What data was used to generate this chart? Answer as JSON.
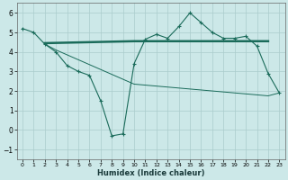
{
  "bg_color": "#cce8e8",
  "grid_color": "#aacccc",
  "line_color": "#1a6b5a",
  "xlabel": "Humidex (Indice chaleur)",
  "ylim": [
    -1.5,
    6.5
  ],
  "xlim": [
    -0.5,
    23.5
  ],
  "yticks": [
    -1,
    0,
    1,
    2,
    3,
    4,
    5,
    6
  ],
  "xticks": [
    0,
    1,
    2,
    3,
    4,
    5,
    6,
    7,
    8,
    9,
    10,
    11,
    12,
    13,
    14,
    15,
    16,
    17,
    18,
    19,
    20,
    21,
    22,
    23
  ],
  "line1_x": [
    0,
    1,
    2,
    3,
    4,
    5,
    6,
    7,
    8,
    9,
    10,
    11,
    12,
    13,
    14,
    15,
    16,
    17,
    18,
    19,
    20,
    21,
    22,
    23
  ],
  "line1_y": [
    5.2,
    5.0,
    4.4,
    4.0,
    3.3,
    3.0,
    2.8,
    1.5,
    -0.3,
    -0.2,
    3.4,
    4.65,
    4.9,
    4.7,
    5.3,
    6.0,
    5.5,
    5.0,
    4.7,
    4.7,
    4.8,
    4.3,
    2.9,
    1.9
  ],
  "line2_x": [
    2,
    10,
    22
  ],
  "line2_y": [
    4.45,
    4.55,
    4.55
  ],
  "line3_x": [
    2,
    3,
    4,
    5,
    6,
    7,
    8,
    9,
    10,
    11,
    12,
    13,
    14,
    15,
    16,
    17,
    18,
    19,
    20,
    21,
    22,
    23
  ],
  "line3_y": [
    4.4,
    4.1,
    3.85,
    3.6,
    3.35,
    3.1,
    2.85,
    2.6,
    2.35,
    2.3,
    2.25,
    2.2,
    2.15,
    2.1,
    2.05,
    2.0,
    1.95,
    1.9,
    1.85,
    1.8,
    1.75,
    1.9
  ]
}
